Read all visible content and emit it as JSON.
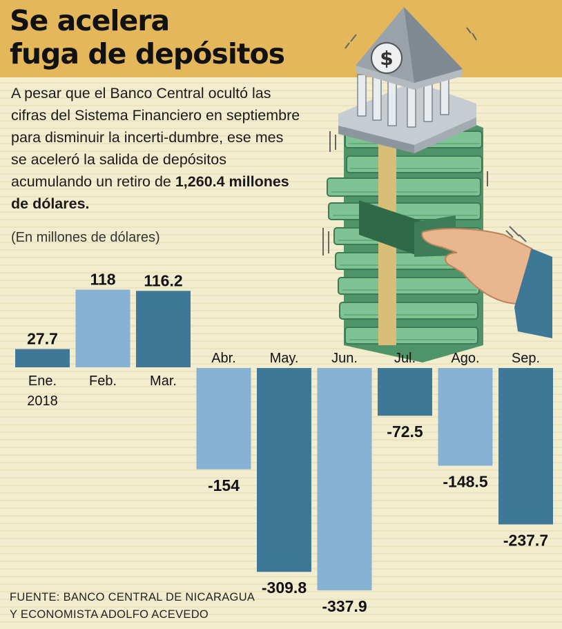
{
  "header": {
    "title_line1": "Se acelera",
    "title_line2": "fuga de depósitos"
  },
  "intro": {
    "text": "A pesar que el Banco Central ocultó las cifras del Sistema Financiero en septiembre para disminuir la incerti-dumbre, ese mes se aceleró la salida de depósitos acumulando un retiro de ",
    "highlight": "1,260.4 millones de dólares."
  },
  "unit_note": "(En millones de dólares)",
  "source": {
    "line1": "FUENTE: BANCO CENTRAL DE NICARAGUA",
    "line2": "Y ECONOMISTA ADOLFO ACEVEDO"
  },
  "illustration": {
    "icons": [
      "bank-building-icon",
      "dollar-sign-icon",
      "money-stack-icon",
      "hand-icon"
    ],
    "symbol": "$"
  },
  "colors": {
    "header_bg": "#e3b75a",
    "background": "#f3edd0",
    "bar_dark": "#3f7797",
    "bar_light": "#86b2d4"
  },
  "chart_data": {
    "type": "bar",
    "categories": [
      "Ene.",
      "Feb.",
      "Mar.",
      "Abr.",
      "May.",
      "Jun.",
      "Jul.",
      "Ago.",
      "Sep."
    ],
    "category_sublabels": [
      "2018",
      "",
      "",
      "",
      "",
      "",
      "",
      "",
      ""
    ],
    "values": [
      27.7,
      118,
      116.2,
      -154,
      -309.8,
      -337.9,
      -72.5,
      -148.5,
      -237.7
    ],
    "value_labels": [
      "27.7",
      "118",
      "116.2",
      "-154",
      "-309.8",
      "-337.9",
      "-72.5",
      "-148.5",
      "-237.7"
    ],
    "bar_colors": [
      "dark",
      "light",
      "dark",
      "light",
      "dark",
      "light",
      "dark",
      "light",
      "dark"
    ],
    "title": "",
    "xlabel": "",
    "ylabel": "(En millones de dólares)",
    "grid": false,
    "axis_visible": false
  }
}
